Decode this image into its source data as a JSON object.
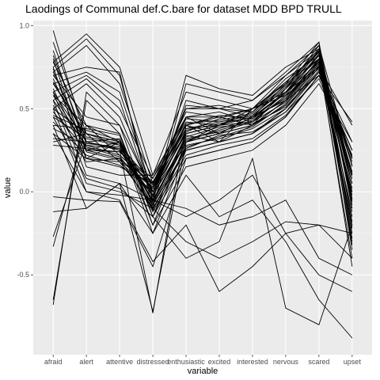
{
  "chart_data": {
    "type": "line",
    "title": "Laodings of Communal def.C.bare for dataset MDD BPD TRULL",
    "xlabel": "variable",
    "ylabel": "value",
    "categories": [
      "afraid",
      "alert",
      "attentive",
      "distressed",
      "enthusiastic",
      "excited",
      "interested",
      "nervous",
      "scared",
      "upset"
    ],
    "ylim": [
      -0.98,
      1.03
    ],
    "yticks": [
      -0.5,
      0.0,
      0.5,
      1.0
    ],
    "ytick_labels": [
      "-0.5",
      "0.0",
      "0.5",
      "1.0"
    ],
    "grid": true,
    "legend": "none",
    "colors": {
      "panel_background": "#ebebeb",
      "grid_major": "#ffffff",
      "grid_minor": "#f5f5f5",
      "line": "#000000"
    },
    "series": [
      {
        "values": [
          0.97,
          0.3,
          0.25,
          -0.05,
          0.3,
          0.35,
          0.4,
          0.55,
          0.8,
          0.2
        ]
      },
      {
        "values": [
          0.9,
          0.35,
          0.3,
          0.0,
          0.35,
          0.4,
          0.45,
          0.6,
          0.85,
          0.1
        ]
      },
      {
        "values": [
          0.85,
          0.25,
          0.2,
          -0.1,
          0.25,
          0.3,
          0.35,
          0.5,
          0.75,
          0.0
        ]
      },
      {
        "values": [
          0.8,
          0.2,
          0.15,
          0.05,
          0.4,
          0.3,
          0.5,
          0.65,
          0.9,
          -0.1
        ]
      },
      {
        "values": [
          0.78,
          0.4,
          0.35,
          -0.15,
          0.2,
          0.25,
          0.3,
          0.45,
          0.7,
          0.25
        ]
      },
      {
        "values": [
          0.75,
          0.15,
          0.1,
          0.1,
          0.45,
          0.45,
          0.4,
          0.55,
          0.8,
          -0.2
        ]
      },
      {
        "values": [
          0.72,
          0.3,
          0.25,
          -0.05,
          0.3,
          0.35,
          0.45,
          0.55,
          0.78,
          0.05
        ]
      },
      {
        "values": [
          0.7,
          0.45,
          0.4,
          0.0,
          0.5,
          0.5,
          0.55,
          0.7,
          0.88,
          0.15
        ]
      },
      {
        "values": [
          0.68,
          0.25,
          0.3,
          -0.2,
          0.15,
          0.2,
          0.25,
          0.4,
          0.65,
          0.3
        ]
      },
      {
        "values": [
          0.65,
          0.35,
          0.28,
          0.05,
          0.35,
          0.4,
          0.42,
          0.58,
          0.82,
          -0.05
        ]
      },
      {
        "values": [
          0.62,
          0.2,
          0.18,
          0.0,
          0.4,
          0.45,
          0.5,
          0.6,
          0.75,
          0.1
        ]
      },
      {
        "values": [
          0.6,
          0.3,
          0.32,
          -0.1,
          0.25,
          0.3,
          0.35,
          0.48,
          0.72,
          0.2
        ]
      },
      {
        "values": [
          0.58,
          0.4,
          0.22,
          0.05,
          0.45,
          0.35,
          0.4,
          0.52,
          0.76,
          0.0
        ]
      },
      {
        "values": [
          0.55,
          0.28,
          0.26,
          -0.08,
          0.3,
          0.38,
          0.44,
          0.56,
          0.8,
          -0.15
        ]
      },
      {
        "values": [
          0.52,
          0.18,
          0.2,
          0.02,
          0.38,
          0.42,
          0.46,
          0.62,
          0.84,
          0.05
        ]
      },
      {
        "values": [
          0.5,
          0.35,
          0.3,
          -0.12,
          0.22,
          0.28,
          0.32,
          0.46,
          0.7,
          0.25
        ]
      },
      {
        "values": [
          0.48,
          0.25,
          0.24,
          0.08,
          0.42,
          0.4,
          0.48,
          0.64,
          0.86,
          -0.08
        ]
      },
      {
        "values": [
          0.45,
          0.32,
          0.28,
          -0.05,
          0.32,
          0.36,
          0.42,
          0.54,
          0.78,
          0.12
        ]
      },
      {
        "values": [
          0.42,
          0.22,
          0.16,
          0.0,
          0.36,
          0.44,
          0.5,
          0.58,
          0.74,
          -0.12
        ]
      },
      {
        "values": [
          0.4,
          0.38,
          0.34,
          -0.15,
          0.28,
          0.32,
          0.38,
          0.5,
          0.72,
          0.18
        ]
      },
      {
        "values": [
          0.38,
          0.28,
          0.22,
          0.04,
          0.4,
          0.46,
          0.44,
          0.6,
          0.82,
          -0.02
        ]
      },
      {
        "values": [
          0.35,
          0.2,
          0.3,
          -0.06,
          0.34,
          0.3,
          0.4,
          0.52,
          0.76,
          0.08
        ]
      },
      {
        "values": [
          0.32,
          0.3,
          0.26,
          0.02,
          0.44,
          0.42,
          0.46,
          0.62,
          0.88,
          -0.18
        ]
      },
      {
        "values": [
          0.3,
          0.35,
          0.18,
          -0.08,
          0.26,
          0.34,
          0.36,
          0.48,
          0.68,
          0.22
        ]
      },
      {
        "values": [
          0.28,
          0.26,
          0.24,
          0.06,
          0.38,
          0.4,
          0.5,
          0.66,
          0.84,
          -0.06
        ]
      },
      {
        "values": [
          0.78,
          0.95,
          0.75,
          0.1,
          0.6,
          0.55,
          0.5,
          0.7,
          0.85,
          -0.25
        ]
      },
      {
        "values": [
          0.75,
          0.92,
          0.7,
          -0.05,
          0.55,
          0.5,
          0.45,
          0.65,
          0.8,
          -0.3
        ]
      },
      {
        "values": [
          0.72,
          0.88,
          0.65,
          0.05,
          0.5,
          0.52,
          0.48,
          0.68,
          0.82,
          -0.22
        ]
      },
      {
        "values": [
          0.7,
          0.75,
          0.72,
          -0.1,
          0.65,
          0.6,
          0.55,
          0.72,
          0.9,
          -0.35
        ]
      },
      {
        "values": [
          0.65,
          0.72,
          0.6,
          0.0,
          0.45,
          0.48,
          0.42,
          0.6,
          0.78,
          -0.4
        ]
      },
      {
        "values": [
          0.6,
          0.7,
          0.55,
          -0.05,
          0.7,
          0.62,
          0.58,
          0.75,
          0.86,
          -0.28
        ]
      },
      {
        "values": [
          0.55,
          0.68,
          0.5,
          0.08,
          0.48,
          0.45,
          0.4,
          0.62,
          0.8,
          -0.45
        ]
      },
      {
        "values": [
          0.5,
          0.65,
          0.45,
          -0.02,
          0.52,
          0.5,
          0.48,
          0.66,
          0.84,
          -0.32
        ]
      },
      {
        "values": [
          -0.68,
          0.6,
          0.4,
          -0.15,
          0.35,
          0.4,
          0.45,
          0.6,
          0.75,
          0.4
        ]
      },
      {
        "values": [
          -0.65,
          0.55,
          0.35,
          -0.2,
          0.3,
          0.35,
          0.4,
          0.55,
          0.7,
          0.42
        ]
      },
      {
        "values": [
          -0.33,
          0.4,
          0.3,
          -0.25,
          0.25,
          0.3,
          0.35,
          0.5,
          0.72,
          0.3
        ]
      },
      {
        "values": [
          -0.27,
          0.3,
          0.25,
          -0.73,
          0.4,
          0.35,
          0.45,
          0.55,
          0.8,
          0.2
        ]
      },
      {
        "values": [
          -0.12,
          -0.1,
          0.05,
          -0.72,
          0.3,
          0.4,
          0.5,
          0.6,
          0.78,
          0.1
        ]
      },
      {
        "values": [
          -0.03,
          -0.05,
          -0.06,
          -0.45,
          0.2,
          0.25,
          0.3,
          0.45,
          0.7,
          0.25
        ]
      },
      {
        "values": [
          0.6,
          0.1,
          0.05,
          -0.05,
          -0.1,
          -0.2,
          -0.15,
          -0.05,
          -0.4,
          -0.5
        ]
      },
      {
        "values": [
          0.55,
          0.05,
          0.0,
          -0.1,
          -0.3,
          -0.4,
          -0.3,
          -0.18,
          -0.2,
          -0.25
        ]
      },
      {
        "values": [
          0.5,
          0.0,
          -0.05,
          -0.42,
          -0.2,
          -0.6,
          -0.45,
          -0.25,
          -0.5,
          -0.6
        ]
      },
      {
        "values": [
          0.45,
          0.08,
          0.02,
          -0.15,
          -0.4,
          -0.3,
          0.2,
          -0.7,
          -0.8,
          -0.2
        ]
      },
      {
        "values": [
          0.4,
          -0.1,
          0.05,
          -0.25,
          0.1,
          -0.15,
          -0.05,
          -0.3,
          -0.65,
          -0.88
        ]
      },
      {
        "values": [
          0.35,
          0.0,
          -0.02,
          -0.05,
          -0.15,
          -0.05,
          0.1,
          -0.25,
          -0.2,
          -0.4
        ]
      },
      {
        "values": [
          0.58,
          0.27,
          0.21,
          -0.02,
          0.31,
          0.37,
          0.43,
          0.57,
          0.79,
          0.11
        ]
      },
      {
        "values": [
          0.66,
          0.33,
          0.29,
          -0.11,
          0.27,
          0.33,
          0.39,
          0.53,
          0.77,
          0.16
        ]
      },
      {
        "values": [
          0.74,
          0.24,
          0.19,
          0.03,
          0.41,
          0.43,
          0.47,
          0.63,
          0.85,
          -0.04
        ]
      },
      {
        "values": [
          0.46,
          0.37,
          0.31,
          -0.07,
          0.33,
          0.39,
          0.41,
          0.51,
          0.73,
          0.21
        ]
      },
      {
        "values": [
          0.82,
          0.29,
          0.27,
          -0.03,
          0.37,
          0.41,
          0.45,
          0.59,
          0.83,
          0.02
        ]
      }
    ]
  }
}
